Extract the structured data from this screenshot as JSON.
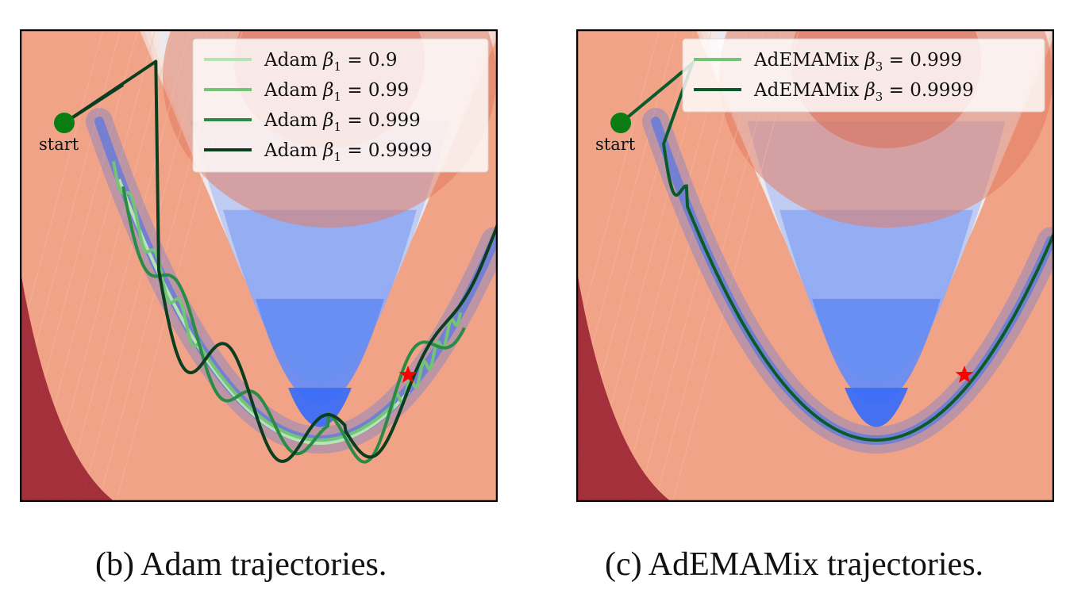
{
  "chart_data": [
    {
      "type": "contour",
      "panel": "b",
      "caption": "(b) Adam trajectories.",
      "start_label": "start",
      "colors": {
        "high": "#8b0a23",
        "mid": "#f0a386",
        "low": "#f2efee",
        "valley": "#3b6ef5",
        "optimum": "#ff0000",
        "start": "#0a7d12"
      },
      "legend": {
        "placement": "top-right"
      },
      "series": [
        {
          "name": "Adam $\\beta_1 = 0.9$",
          "label_prefix": "Adam ",
          "label_sym": "β",
          "label_sub": "1",
          "label_value": " = 0.9",
          "color": "#b6e3b3"
        },
        {
          "name": "Adam $\\beta_1 = 0.99$",
          "label_prefix": "Adam ",
          "label_sym": "β",
          "label_sub": "1",
          "label_value": " = 0.99",
          "color": "#74c476"
        },
        {
          "name": "Adam $\\beta_1 = 0.999$",
          "label_prefix": "Adam ",
          "label_sym": "β",
          "label_sub": "1",
          "label_value": " = 0.999",
          "color": "#2a8c44"
        },
        {
          "name": "Adam $\\beta_1 = 0.9999$",
          "label_prefix": "Adam ",
          "label_sym": "β",
          "label_sub": "1",
          "label_value": " = 0.9999",
          "color": "#0b3d1f"
        }
      ]
    },
    {
      "type": "contour",
      "panel": "c",
      "caption": "(c) AdEMAMix trajectories.",
      "start_label": "start",
      "colors": {
        "high": "#8b0a23",
        "mid": "#f0a386",
        "low": "#f2efee",
        "valley": "#3b6ef5",
        "optimum": "#ff0000",
        "start": "#0a7d12"
      },
      "legend": {
        "placement": "top-right"
      },
      "series": [
        {
          "name": "AdEMAMix $\\beta_3 = 0.999$",
          "label_prefix": "AdEMAMix ",
          "label_sym": "β",
          "label_sub": "3",
          "label_value": " = 0.999",
          "color": "#74c476"
        },
        {
          "name": "AdEMAMix $\\beta_3 = 0.9999$",
          "label_prefix": "AdEMAMix ",
          "label_sym": "β",
          "label_sub": "3",
          "label_value": " = 0.9999",
          "color": "#0b5a2c"
        }
      ]
    }
  ]
}
